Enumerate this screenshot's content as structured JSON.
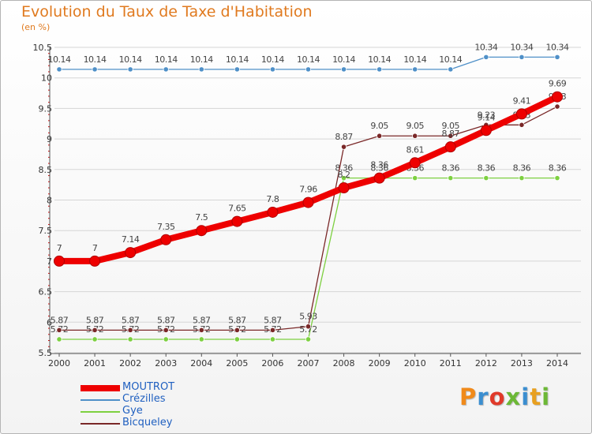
{
  "title": "Evolution du Taux de Taxe d'Habitation",
  "subtitle": "(en %)",
  "logo_text": "Proxiti",
  "logo_colors": [
    "#f08a1a",
    "#3b8ed0",
    "#e03a2a",
    "#6cb836",
    "#3b8ed0",
    "#e8a020",
    "#6cb836"
  ],
  "chart_data": {
    "type": "line",
    "x": [
      2000,
      2001,
      2002,
      2003,
      2004,
      2005,
      2006,
      2007,
      2008,
      2009,
      2010,
      2011,
      2012,
      2013,
      2014
    ],
    "ylim": [
      5.5,
      10.5
    ],
    "yticks": [
      "5.5",
      "6",
      "6.5",
      "7",
      "7.5",
      "8",
      "8.5",
      "9",
      "9.5",
      "10",
      "10.5"
    ],
    "grid": "horizontal",
    "legend_position": "bottom-left",
    "series": [
      {
        "name": "MOUTROT",
        "color": "#ee0000",
        "values": [
          7,
          7,
          7.14,
          7.35,
          7.5,
          7.65,
          7.8,
          7.96,
          8.2,
          8.36,
          8.61,
          8.87,
          9.14,
          9.41,
          9.69
        ],
        "labels": [
          "7",
          "7",
          "7.14",
          "7.35",
          "7.5",
          "7.65",
          "7.8",
          "7.96",
          "8.2",
          "8.36",
          "8.61",
          "8.87",
          "9.14",
          "9.41",
          "9.69"
        ]
      },
      {
        "name": "Crézilles",
        "color": "#4f90c8",
        "values": [
          10.14,
          10.14,
          10.14,
          10.14,
          10.14,
          10.14,
          10.14,
          10.14,
          10.14,
          10.14,
          10.14,
          10.14,
          10.34,
          10.34,
          10.34
        ],
        "labels": [
          "10.14",
          "10.14",
          "10.14",
          "10.14",
          "10.14",
          "10.14",
          "10.14",
          "10.14",
          "10.14",
          "10.14",
          "10.14",
          "10.14",
          "10.34",
          "10.34",
          "10.34"
        ]
      },
      {
        "name": "Gye",
        "color": "#7dd040",
        "values": [
          5.72,
          5.72,
          5.72,
          5.72,
          5.72,
          5.72,
          5.72,
          5.72,
          8.36,
          8.36,
          8.36,
          8.36,
          8.36,
          8.36,
          8.36
        ],
        "labels": [
          "5.72",
          "5.72",
          "5.72",
          "5.72",
          "5.72",
          "5.72",
          "5.72",
          "5.72",
          "8.36",
          "8.36",
          "8.36",
          "8.36",
          "8.36",
          "8.36",
          "8.36"
        ]
      },
      {
        "name": "Bicqueley",
        "color": "#7a2828",
        "values": [
          5.87,
          5.87,
          5.87,
          5.87,
          5.87,
          5.87,
          5.87,
          5.93,
          8.87,
          9.05,
          9.05,
          9.05,
          9.23,
          9.23,
          9.53
        ],
        "labels": [
          "5.87",
          "5.87",
          "5.87",
          "5.87",
          "5.87",
          "5.87",
          "5.87",
          "5.93",
          "8.87",
          "9.05",
          "9.05",
          "9.05",
          "9.23",
          "9.23",
          "9.53"
        ]
      }
    ]
  }
}
